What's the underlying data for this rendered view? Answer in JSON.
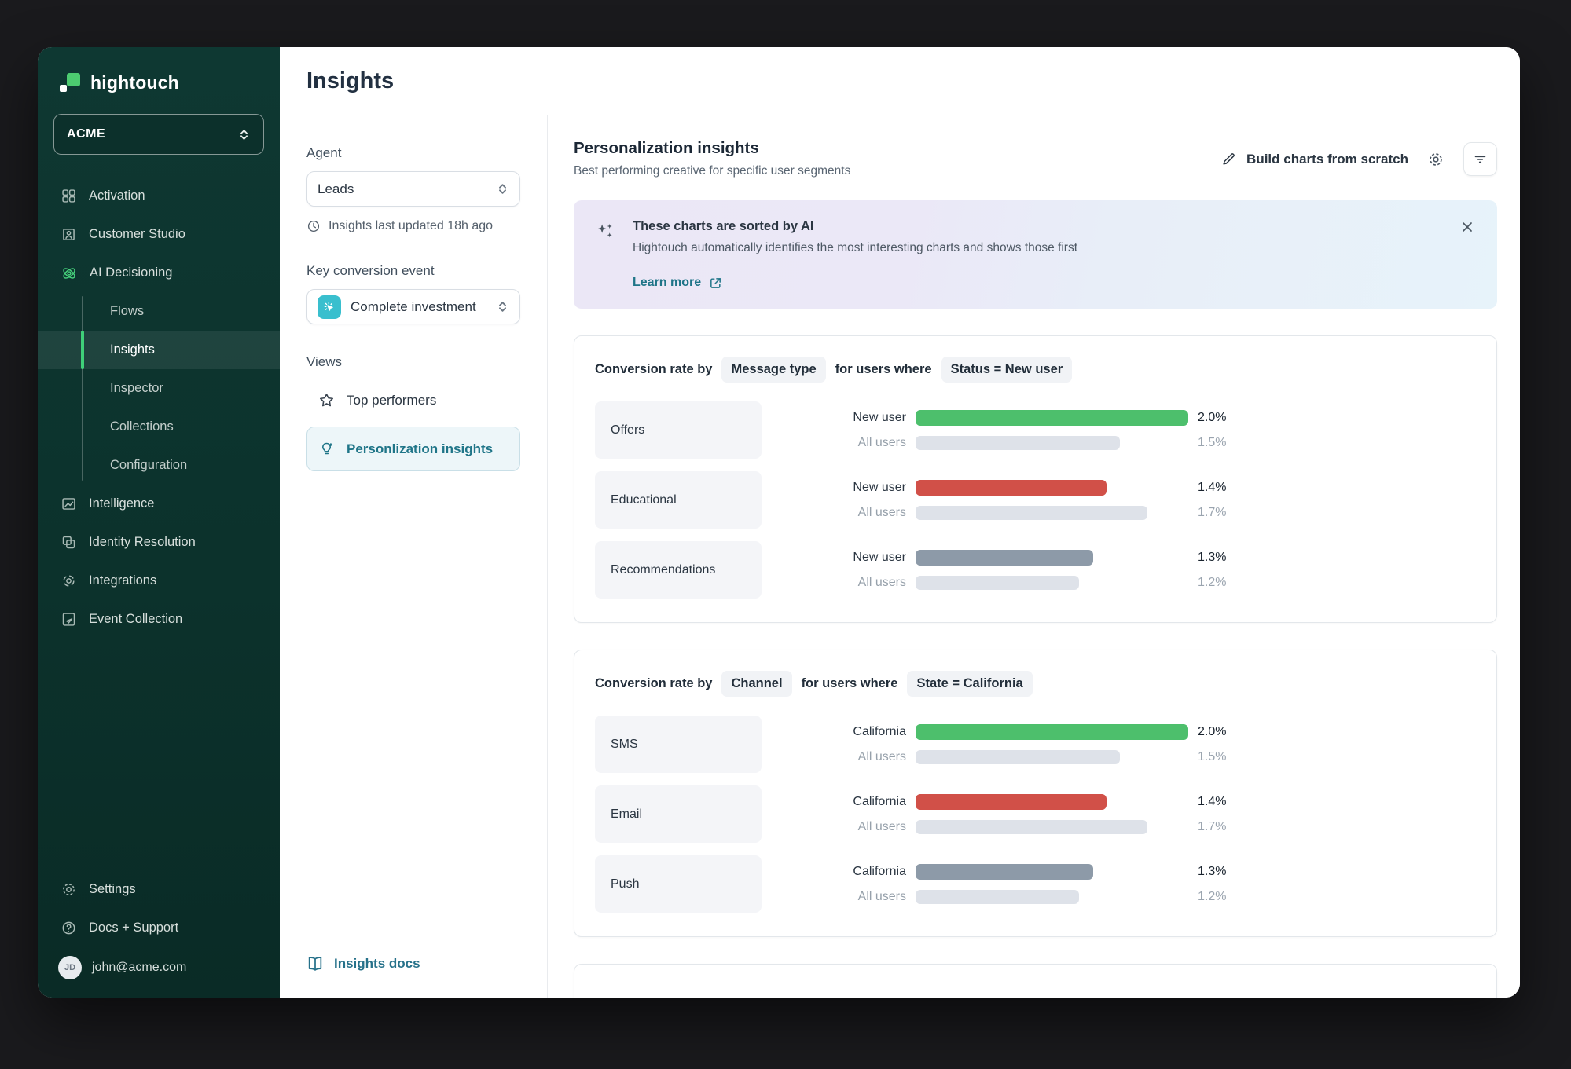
{
  "colors": {
    "sidebar_bg": "#0c322c",
    "accent_green": "#3fd079",
    "logo_green": "#4ccb70",
    "teal_link": "#1f7588",
    "event_icon_bg": "#39bfce",
    "bar_green": "#4dbf6c",
    "bar_red": "#d15048",
    "bar_slate": "#8d9aa8",
    "bar_light": "#dee2e9",
    "banner_gradient_left": "#ebe7f6",
    "banner_gradient_right": "#e7f3fa"
  },
  "icons": {
    "workspace-chevron": "updown-chevron",
    "close": "×",
    "star": "☆",
    "sparkles": "✦",
    "clock": "clock-outline",
    "pencil": "✎",
    "gear": "⚙",
    "filter": "filter-lines",
    "book": "open-book",
    "external-link": "↗",
    "help": "?",
    "bulb": "lightbulb",
    "click": "cursor-click"
  },
  "sidebar": {
    "logo_text": "hightouch",
    "workspace": "ACME",
    "items": [
      {
        "label": "Activation",
        "icon": "activation-grid-icon"
      },
      {
        "label": "Customer Studio",
        "icon": "customer-studio-icon"
      },
      {
        "label": "AI Decisioning",
        "icon": "ai-decisioning-icon"
      }
    ],
    "sub_items": [
      {
        "label": "Flows",
        "active": false
      },
      {
        "label": "Insights",
        "active": true
      },
      {
        "label": "Inspector",
        "active": false
      },
      {
        "label": "Collections",
        "active": false
      },
      {
        "label": "Configuration",
        "active": false
      }
    ],
    "items_lower": [
      {
        "label": "Intelligence",
        "icon": "intelligence-icon"
      },
      {
        "label": "Identity Resolution",
        "icon": "identity-resolution-icon"
      },
      {
        "label": "Integrations",
        "icon": "integrations-icon"
      },
      {
        "label": "Event Collection",
        "icon": "event-collection-icon"
      }
    ],
    "footer_items": [
      {
        "label": "Settings",
        "icon": "gear-icon"
      },
      {
        "label": "Docs + Support",
        "icon": "help-icon"
      }
    ],
    "avatar_initials": "JD",
    "user_email": "john@acme.com"
  },
  "topbar": {
    "title": "Insights"
  },
  "filters": {
    "agent_label": "Agent",
    "agent_value": "Leads",
    "last_updated": "Insights last updated 18h ago",
    "key_event_label": "Key conversion event",
    "key_event_value": "Complete investment",
    "views_label": "Views",
    "views": [
      {
        "label": "Top performers",
        "active": false
      },
      {
        "label": "Personlization insights",
        "active": true
      }
    ],
    "docs_link": "Insights docs"
  },
  "main": {
    "title": "Personalization insights",
    "subtitle": "Best performing creative for specific user segments",
    "build_button": "Build charts from scratch",
    "banner": {
      "title": "These charts are sorted by AI",
      "description": "Hightouch automatically identifies the most interesting charts and shows those first",
      "link_label": "Learn more"
    }
  },
  "chart_data": [
    {
      "type": "bar",
      "title_prefix": "Conversion rate by",
      "dimension_badge": "Message type",
      "title_middle": "for users where",
      "filter_badge": "Status = New user",
      "max_value": 2.0,
      "unit": "%",
      "rows": [
        {
          "category": "Offers",
          "series": [
            {
              "label": "New user",
              "value": 2.0,
              "display": "2.0%",
              "color": "#4dbf6c",
              "emphasis": true
            },
            {
              "label": "All users",
              "value": 1.5,
              "display": "1.5%",
              "color": "#dee2e9",
              "emphasis": false
            }
          ]
        },
        {
          "category": "Educational",
          "series": [
            {
              "label": "New user",
              "value": 1.4,
              "display": "1.4%",
              "color": "#d15048",
              "emphasis": true
            },
            {
              "label": "All users",
              "value": 1.7,
              "display": "1.7%",
              "color": "#dee2e9",
              "emphasis": false
            }
          ]
        },
        {
          "category": "Recommendations",
          "series": [
            {
              "label": "New user",
              "value": 1.3,
              "display": "1.3%",
              "color": "#8d9aa8",
              "emphasis": true
            },
            {
              "label": "All users",
              "value": 1.2,
              "display": "1.2%",
              "color": "#dee2e9",
              "emphasis": false
            }
          ]
        }
      ]
    },
    {
      "type": "bar",
      "title_prefix": "Conversion rate by",
      "dimension_badge": "Channel",
      "title_middle": "for users where",
      "filter_badge": "State = California",
      "max_value": 2.0,
      "unit": "%",
      "rows": [
        {
          "category": "SMS",
          "series": [
            {
              "label": "California",
              "value": 2.0,
              "display": "2.0%",
              "color": "#4dbf6c",
              "emphasis": true
            },
            {
              "label": "All users",
              "value": 1.5,
              "display": "1.5%",
              "color": "#dee2e9",
              "emphasis": false
            }
          ]
        },
        {
          "category": "Email",
          "series": [
            {
              "label": "California",
              "value": 1.4,
              "display": "1.4%",
              "color": "#d15048",
              "emphasis": true
            },
            {
              "label": "All users",
              "value": 1.7,
              "display": "1.7%",
              "color": "#dee2e9",
              "emphasis": false
            }
          ]
        },
        {
          "category": "Push",
          "series": [
            {
              "label": "California",
              "value": 1.3,
              "display": "1.3%",
              "color": "#8d9aa8",
              "emphasis": true
            },
            {
              "label": "All users",
              "value": 1.2,
              "display": "1.2%",
              "color": "#dee2e9",
              "emphasis": false
            }
          ]
        }
      ]
    }
  ]
}
